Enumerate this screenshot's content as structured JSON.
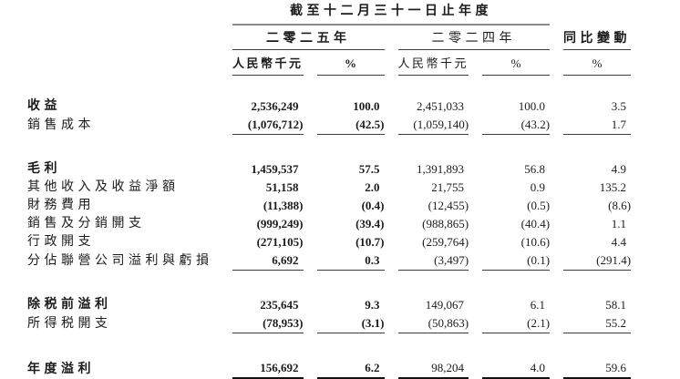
{
  "table": {
    "period_title": "截至十二月三十一日止年度",
    "groups": [
      {
        "label": "二零二五年"
      },
      {
        "label": "二零二四年"
      },
      {
        "label": "同比變動"
      }
    ],
    "columns": [
      {
        "label": "人民幣千元"
      },
      {
        "label": "%"
      },
      {
        "label": "人民幣千元"
      },
      {
        "label": "%"
      },
      {
        "label": "%"
      }
    ],
    "rows": [
      {
        "type": "data",
        "label": "收益",
        "emphasis": true,
        "values": [
          "2,536,249",
          "100.0",
          "2,451,033",
          "100.0",
          "3.5"
        ]
      },
      {
        "type": "data",
        "label": "銷售成本",
        "emphasis": false,
        "values": [
          "(1,076,712)",
          "(42.5)",
          "(1,059,140)",
          "(43.2)",
          "1.7"
        ],
        "rule": "thin"
      },
      {
        "type": "spacer"
      },
      {
        "type": "data",
        "label": "毛利",
        "emphasis": true,
        "values": [
          "1,459,537",
          "57.5",
          "1,391,893",
          "56.8",
          "4.9"
        ]
      },
      {
        "type": "data",
        "label": "其他收入及收益淨額",
        "emphasis": false,
        "values": [
          "51,158",
          "2.0",
          "21,755",
          "0.9",
          "135.2"
        ]
      },
      {
        "type": "data",
        "label": "財務費用",
        "emphasis": false,
        "values": [
          "(11,388)",
          "(0.4)",
          "(12,455)",
          "(0.5)",
          "(8.6)"
        ]
      },
      {
        "type": "data",
        "label": "銷售及分銷開支",
        "emphasis": false,
        "values": [
          "(999,249)",
          "(39.4)",
          "(988,865)",
          "(40.4)",
          "1.1"
        ]
      },
      {
        "type": "data",
        "label": "行政開支",
        "emphasis": false,
        "values": [
          "(271,105)",
          "(10.7)",
          "(259,764)",
          "(10.6)",
          "4.4"
        ]
      },
      {
        "type": "data",
        "label": "分佔聯營公司溢利與虧損",
        "emphasis": false,
        "values": [
          "6,692",
          "0.3",
          "(3,497)",
          "(0.1)",
          "(291.4)"
        ],
        "rule": "thin"
      },
      {
        "type": "spacer"
      },
      {
        "type": "data",
        "label": "除税前溢利",
        "emphasis": true,
        "values": [
          "235,645",
          "9.3",
          "149,067",
          "6.1",
          "58.1"
        ]
      },
      {
        "type": "data",
        "label": "所得税開支",
        "emphasis": false,
        "values": [
          "(78,953)",
          "(3.1)",
          "(50,863)",
          "(2.1)",
          "55.2"
        ],
        "rule": "thin"
      },
      {
        "type": "spacer"
      },
      {
        "type": "data",
        "label": "年度溢利",
        "emphasis": true,
        "values": [
          "156,692",
          "6.2",
          "98,204",
          "4.0",
          "59.6"
        ],
        "rule": "thick"
      }
    ],
    "colors": {
      "text": "#1b1b1b",
      "rule_header": "#8a8a8a",
      "rule_thin": "#3d3d3d",
      "rule_thick": "#111111"
    }
  }
}
